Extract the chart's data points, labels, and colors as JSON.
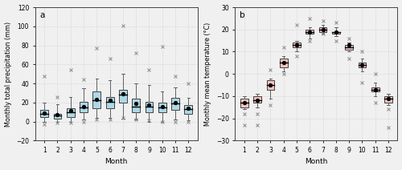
{
  "precip": {
    "medians": [
      8,
      6,
      10,
      15,
      22,
      21,
      28,
      16,
      16,
      15,
      19,
      13
    ],
    "means": [
      9,
      7,
      11,
      16,
      23,
      22,
      29,
      19,
      17,
      16,
      20,
      14
    ],
    "q1": [
      5,
      3,
      5,
      10,
      14,
      14,
      20,
      10,
      10,
      10,
      12,
      8
    ],
    "q3": [
      12,
      8,
      14,
      21,
      32,
      26,
      33,
      24,
      21,
      20,
      25,
      17
    ],
    "whislo": [
      0,
      0,
      0,
      2,
      4,
      4,
      3,
      2,
      0,
      0,
      2,
      1
    ],
    "whishi": [
      20,
      18,
      26,
      35,
      45,
      43,
      50,
      40,
      38,
      32,
      36,
      25
    ],
    "maxima": [
      48,
      26,
      54,
      44,
      77,
      66,
      101,
      72,
      54,
      79,
      48,
      40
    ],
    "minima": [
      -3,
      -1,
      -1,
      0,
      2,
      2,
      4,
      2,
      1,
      0,
      0,
      0
    ],
    "ylabel": "Monthly total precipitation (mm)",
    "ylim": [
      -20,
      120
    ],
    "yticks": [
      -20,
      0,
      20,
      40,
      60,
      80,
      100,
      120
    ],
    "label": "a",
    "box_facecolor": "#add8e6",
    "box_edgecolor": "#404040",
    "median_color": "#000000",
    "mean_color": "#000000",
    "whisker_color": "#606060",
    "cross_color": "#888888"
  },
  "temp": {
    "medians": [
      -13,
      -12,
      -5,
      5,
      13,
      19,
      20,
      19,
      12,
      4,
      -7,
      -11
    ],
    "means": [
      -13,
      -12,
      -5,
      5,
      13,
      19,
      20,
      19,
      13,
      4,
      -7,
      -11
    ],
    "q1": [
      -15,
      -13,
      -7,
      3,
      12,
      18,
      19,
      18,
      11,
      3,
      -8,
      -13
    ],
    "q3": [
      -11,
      -10,
      -3,
      7,
      14,
      20,
      21,
      19,
      13,
      5,
      -6,
      -10
    ],
    "whislo": [
      -16,
      -15,
      -11,
      1,
      10,
      16,
      18,
      17,
      10,
      1,
      -10,
      -14
    ],
    "whishi": [
      -10,
      -9,
      -2,
      8,
      15,
      21,
      22,
      21,
      14,
      7,
      -4,
      -9
    ],
    "maxima": [
      -23,
      -23,
      2,
      12,
      22,
      25,
      24,
      23,
      16,
      10,
      0,
      -24
    ],
    "minima": [
      -18,
      -18,
      -14,
      0,
      8,
      15,
      18,
      15,
      7,
      -4,
      -13,
      -16
    ],
    "ylabel": "Monthly mean temperature (°C)",
    "ylim": [
      -30,
      30
    ],
    "yticks": [
      -30,
      -20,
      -10,
      0,
      10,
      20,
      30
    ],
    "label": "b",
    "box_facecolor": "#f4c2c2",
    "box_edgecolor": "#404040",
    "median_color": "#000000",
    "mean_color": "#000000",
    "whisker_color": "#606060",
    "cross_color": "#888888"
  },
  "xlabel": "Month",
  "months": [
    1,
    2,
    3,
    4,
    5,
    6,
    7,
    8,
    9,
    10,
    11,
    12
  ],
  "background_color": "#f0f0f0",
  "grid_color": "#cccccc",
  "grid_linestyle": ":",
  "figsize": [
    5.0,
    2.12
  ],
  "dpi": 100
}
